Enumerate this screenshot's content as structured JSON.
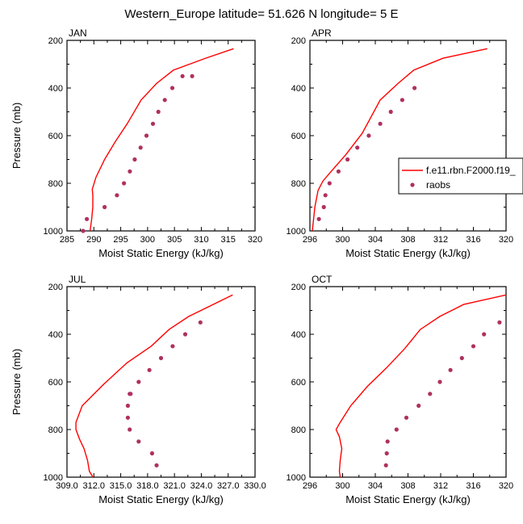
{
  "title": "Western_Europe  latitude= 51.626 N longitude= 5 E",
  "legend": {
    "model_label": "f.e11.rbn.F2000.f19_",
    "obs_label": "raobs"
  },
  "colors": {
    "model": "#ff0000",
    "obs": "#b03060",
    "axis": "#000000"
  },
  "chart_data": [
    {
      "type": "line",
      "panel": "JAN",
      "title": "JAN",
      "xlabel": "Moist Static Energy (kJ/kg)",
      "ylabel": "Pressure (mb)",
      "xlim": [
        285,
        320
      ],
      "ylim": [
        1000,
        200
      ],
      "xticks": [
        285,
        290,
        295,
        300,
        305,
        310,
        315,
        320
      ],
      "xticklabels": [
        "285",
        "290",
        "295",
        "300",
        "305",
        "310",
        "315",
        "320"
      ],
      "yticks": [
        200,
        400,
        600,
        800,
        1000
      ],
      "yticklabels": [
        "200",
        "400",
        "600",
        "800",
        "1000"
      ],
      "series": [
        {
          "name": "f.e11.rbn.F2000.f19_",
          "kind": "line",
          "x": [
            289.3,
            289.6,
            289.8,
            289.8,
            289.7,
            290.4,
            292.0,
            294.0,
            296.2,
            298.8,
            301.7,
            304.8,
            310.8,
            316.0
          ],
          "y": [
            1000,
            950,
            900,
            850,
            825,
            775,
            700,
            625,
            550,
            450,
            380,
            325,
            275,
            235
          ]
        },
        {
          "name": "raobs",
          "kind": "scatter",
          "x": [
            288.0,
            288.7,
            292.0,
            294.3,
            295.6,
            296.7,
            297.6,
            298.7,
            299.8,
            301.0,
            302.0,
            303.2,
            304.6,
            306.5,
            308.3
          ],
          "y": [
            1000,
            950,
            900,
            850,
            800,
            750,
            700,
            650,
            600,
            550,
            500,
            450,
            400,
            350,
            350
          ]
        }
      ]
    },
    {
      "type": "line",
      "panel": "APR",
      "title": "APR",
      "xlabel": "Moist Static Energy (kJ/kg)",
      "ylabel": "",
      "xlim": [
        296,
        320
      ],
      "ylim": [
        1000,
        200
      ],
      "xticks": [
        296,
        300,
        304,
        308,
        312,
        316,
        320
      ],
      "xticklabels": [
        "296",
        "300",
        "304",
        "308",
        "312",
        "316",
        "320"
      ],
      "yticks": [
        200,
        400,
        600,
        800,
        1000
      ],
      "yticklabels": [
        "200",
        "400",
        "600",
        "800",
        "1000"
      ],
      "series": [
        {
          "name": "f.e11.rbn.F2000.f19_",
          "kind": "line",
          "x": [
            296.3,
            296.6,
            297.0,
            297.6,
            298.6,
            300.4,
            302.4,
            304.6,
            306.8,
            308.7,
            312.3,
            317.7
          ],
          "y": [
            1000,
            900,
            830,
            790,
            750,
            680,
            590,
            450,
            380,
            325,
            275,
            235
          ]
        },
        {
          "name": "raobs",
          "kind": "scatter",
          "x": [
            297.1,
            297.7,
            297.9,
            298.4,
            299.5,
            300.6,
            301.8,
            303.2,
            304.6,
            305.9,
            307.3,
            308.8
          ],
          "y": [
            950,
            900,
            850,
            800,
            750,
            700,
            650,
            600,
            550,
            500,
            450,
            400
          ]
        }
      ]
    },
    {
      "type": "line",
      "panel": "JUL",
      "title": "JUL",
      "xlabel": "Moist Static Energy (kJ/kg)",
      "ylabel": "Pressure (mb)",
      "xlim": [
        309,
        330
      ],
      "ylim": [
        1000,
        200
      ],
      "xticks": [
        309,
        312,
        315,
        318,
        321,
        324,
        327,
        330
      ],
      "xticklabels": [
        "309.0",
        "312.0",
        "315.0",
        "318.0",
        "321.0",
        "324.0",
        "327.0",
        "330.0"
      ],
      "yticks": [
        200,
        400,
        600,
        800,
        1000
      ],
      "yticklabels": [
        "200",
        "400",
        "600",
        "800",
        "1000"
      ],
      "series": [
        {
          "name": "f.e11.rbn.F2000.f19_",
          "kind": "line",
          "x": [
            311.9,
            311.5,
            311.3,
            310.9,
            310.4,
            310.0,
            310.0,
            310.7,
            313.1,
            315.7,
            318.4,
            320.4,
            322.6,
            327.5
          ],
          "y": [
            1000,
            975,
            930,
            880,
            840,
            800,
            770,
            700,
            610,
            520,
            450,
            380,
            325,
            235
          ]
        },
        {
          "name": "raobs",
          "kind": "scatter",
          "x": [
            319.0,
            318.5,
            317.0,
            316.0,
            315.8,
            315.8,
            316.0,
            316.1,
            317.0,
            318.2,
            319.5,
            320.8,
            322.2,
            323.9
          ],
          "y": [
            950,
            900,
            850,
            800,
            750,
            700,
            650,
            650,
            600,
            550,
            500,
            450,
            400,
            350
          ]
        }
      ]
    },
    {
      "type": "line",
      "panel": "OCT",
      "title": "OCT",
      "xlabel": "Moist Static Energy (kJ/kg)",
      "ylabel": "",
      "xlim": [
        296,
        320
      ],
      "ylim": [
        1000,
        200
      ],
      "xticks": [
        296,
        300,
        304,
        308,
        312,
        316,
        320
      ],
      "xticklabels": [
        "296",
        "300",
        "304",
        "308",
        "312",
        "316",
        "320"
      ],
      "yticks": [
        200,
        400,
        600,
        800,
        1000
      ],
      "yticklabels": [
        "200",
        "400",
        "600",
        "800",
        "1000"
      ],
      "series": [
        {
          "name": "f.e11.rbn.F2000.f19_",
          "kind": "line",
          "x": [
            299.7,
            299.6,
            299.7,
            299.9,
            299.6,
            299.2,
            299.7,
            301.0,
            303.0,
            305.4,
            307.6,
            309.5,
            311.9,
            314.8,
            320.0
          ],
          "y": [
            1000,
            975,
            930,
            880,
            830,
            800,
            770,
            700,
            620,
            540,
            460,
            380,
            325,
            275,
            235
          ]
        },
        {
          "name": "raobs",
          "kind": "scatter",
          "x": [
            305.3,
            305.4,
            305.5,
            306.6,
            307.8,
            309.3,
            310.7,
            311.9,
            313.2,
            314.6,
            316.0,
            317.3,
            319.2
          ],
          "y": [
            950,
            900,
            850,
            800,
            750,
            700,
            650,
            600,
            550,
            500,
            450,
            400,
            350
          ]
        }
      ]
    }
  ]
}
